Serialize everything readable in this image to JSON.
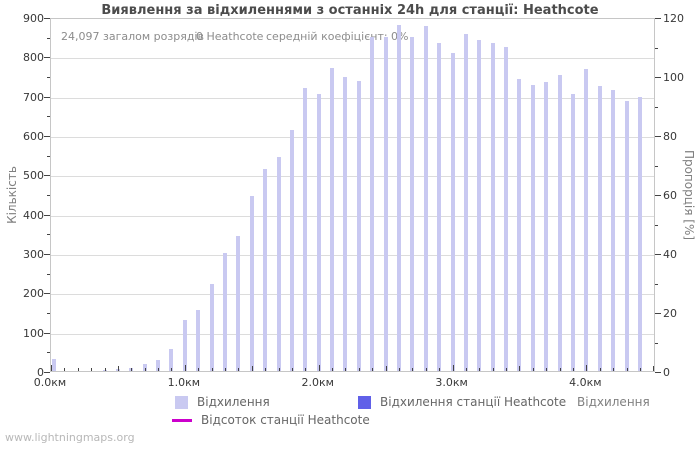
{
  "page": {
    "watermark": "www.lightningmaps.org"
  },
  "stats": {
    "total_strokes": "24,097 загалом розрядів",
    "station_strokes": "0 Heathcote",
    "mean_coefficient": "середній коефіцієнт: 0%"
  },
  "chart_data": {
    "type": "bar",
    "title": "Виявлення за відхиленнями з останніх 24h для станції: Heathcote",
    "station": "Heathcote",
    "x_axis": {
      "label": "Відхилення",
      "unit": "км",
      "min": 0,
      "max": 4.52,
      "tick_values": [
        0,
        1,
        2,
        3,
        4
      ],
      "tick_labels": [
        "0.0км",
        "1.0км",
        "2.0км",
        "3.0км",
        "4.0км"
      ],
      "minor_step": 0.1
    },
    "y_axis_left": {
      "label": "Кількість",
      "min": 0,
      "max": 900,
      "tick_step": 100,
      "minor_step": 50
    },
    "y_axis_right": {
      "label": "Пропорція [%]",
      "min": 0,
      "max": 120,
      "tick_step": 20,
      "minor_step": 10
    },
    "grid": "horizontal-only",
    "legend_position": "bottom",
    "x_km": [
      0.0,
      0.1,
      0.2,
      0.3,
      0.4,
      0.5,
      0.6,
      0.7,
      0.8,
      0.9,
      1.0,
      1.1,
      1.2,
      1.3,
      1.4,
      1.5,
      1.6,
      1.7,
      1.8,
      1.9,
      2.0,
      2.1,
      2.2,
      2.3,
      2.4,
      2.5,
      2.6,
      2.7,
      2.8,
      2.9,
      3.0,
      3.1,
      3.2,
      3.3,
      3.4,
      3.5,
      3.6,
      3.7,
      3.8,
      3.9,
      4.0,
      4.1,
      4.2,
      4.3,
      4.4
    ],
    "series": [
      {
        "name": "Відхилення",
        "type": "bar",
        "axis": "left",
        "color": "#c9c9f1",
        "values": [
          30,
          0,
          0,
          0,
          2,
          4,
          8,
          18,
          28,
          57,
          130,
          155,
          220,
          300,
          343,
          445,
          513,
          543,
          612,
          719,
          705,
          770,
          748,
          737,
          850,
          848,
          880,
          850,
          878,
          833,
          808,
          858,
          841,
          833,
          825,
          742,
          727,
          736,
          752,
          704,
          768,
          725,
          714,
          686,
          696
        ]
      },
      {
        "name": "Відхилення станції Heathcote",
        "type": "bar",
        "axis": "left",
        "color": "#6060e8",
        "all_values_zero": true
      },
      {
        "name": "Відсоток станції Heathcote",
        "type": "line",
        "axis": "right",
        "color": "#cc00cc",
        "all_values_zero": true
      }
    ]
  }
}
